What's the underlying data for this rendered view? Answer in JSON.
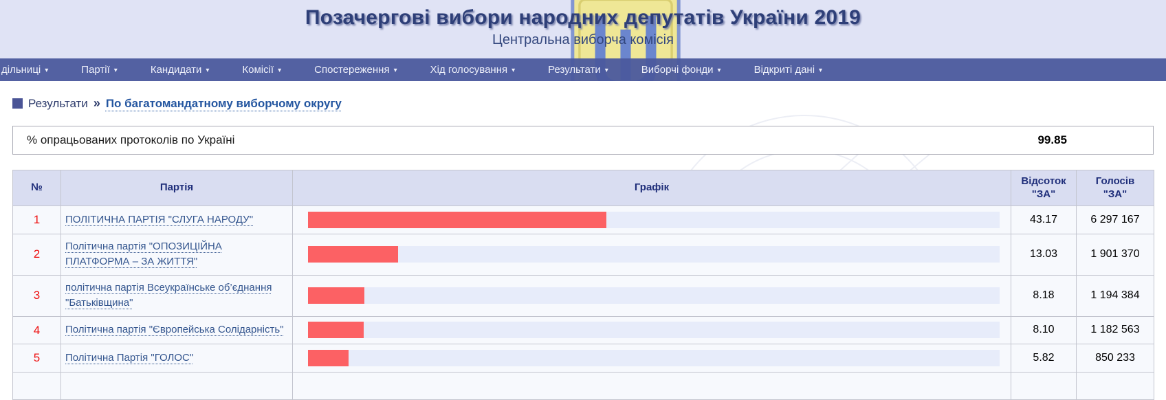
{
  "header": {
    "title": "Позачергові вибори народних депутатів України 2019",
    "subtitle": "Центральна виборча комісія",
    "logo": "cec-emblem"
  },
  "nav": {
    "caret": "▾",
    "items": [
      {
        "label": "дільниці"
      },
      {
        "label": "Партії"
      },
      {
        "label": "Кандидати"
      },
      {
        "label": "Комісії"
      },
      {
        "label": "Спостереження"
      },
      {
        "label": "Хід голосування"
      },
      {
        "label": "Результати"
      },
      {
        "label": "Виборчі фонди"
      },
      {
        "label": "Відкриті дані"
      }
    ]
  },
  "breadcrumb": {
    "section": "Результати",
    "separator": "»",
    "page": "По багатомандатному виборчому округу"
  },
  "protocols": {
    "label": "% опрацьованих протоколів по Україні",
    "value": "99.85"
  },
  "table": {
    "columns": {
      "num": "№",
      "party": "Партія",
      "chart": "Графік",
      "percent": "Відсоток\n\"ЗА\"",
      "votes": "Голосів\n\"ЗА\""
    },
    "rows": [
      {
        "num": "1",
        "party": "ПОЛІТИЧНА ПАРТІЯ \"СЛУГА НАРОДУ\"",
        "bar_pct": 43.17,
        "percent": "43.17",
        "votes": "6 297 167"
      },
      {
        "num": "2",
        "party": "Політична партія \"ОПОЗИЦІЙНА ПЛАТФОРМА – ЗА ЖИТТЯ\"",
        "bar_pct": 13.03,
        "percent": "13.03",
        "votes": "1 901 370"
      },
      {
        "num": "3",
        "party": "політична партія Всеукраїнське об’єднання \"Батьківщина\"",
        "bar_pct": 8.18,
        "percent": "8.18",
        "votes": "1 194 384"
      },
      {
        "num": "4",
        "party": "Політична партія \"Європейська Солідарність\"",
        "bar_pct": 8.1,
        "percent": "8.10",
        "votes": "1 182 563"
      },
      {
        "num": "5",
        "party": "Політична Партія \"ГОЛОС\"",
        "bar_pct": 5.82,
        "percent": "5.82",
        "votes": "850 233"
      }
    ]
  },
  "colors": {
    "header_bg": "#e0e3f5",
    "nav_bg": "#4a599d",
    "bar_red": "#fc6164",
    "bar_track": "#e7ecfa",
    "row_number_red": "#ee1111",
    "link_blue": "#33558e",
    "table_header_bg": "#d9ddf1"
  }
}
